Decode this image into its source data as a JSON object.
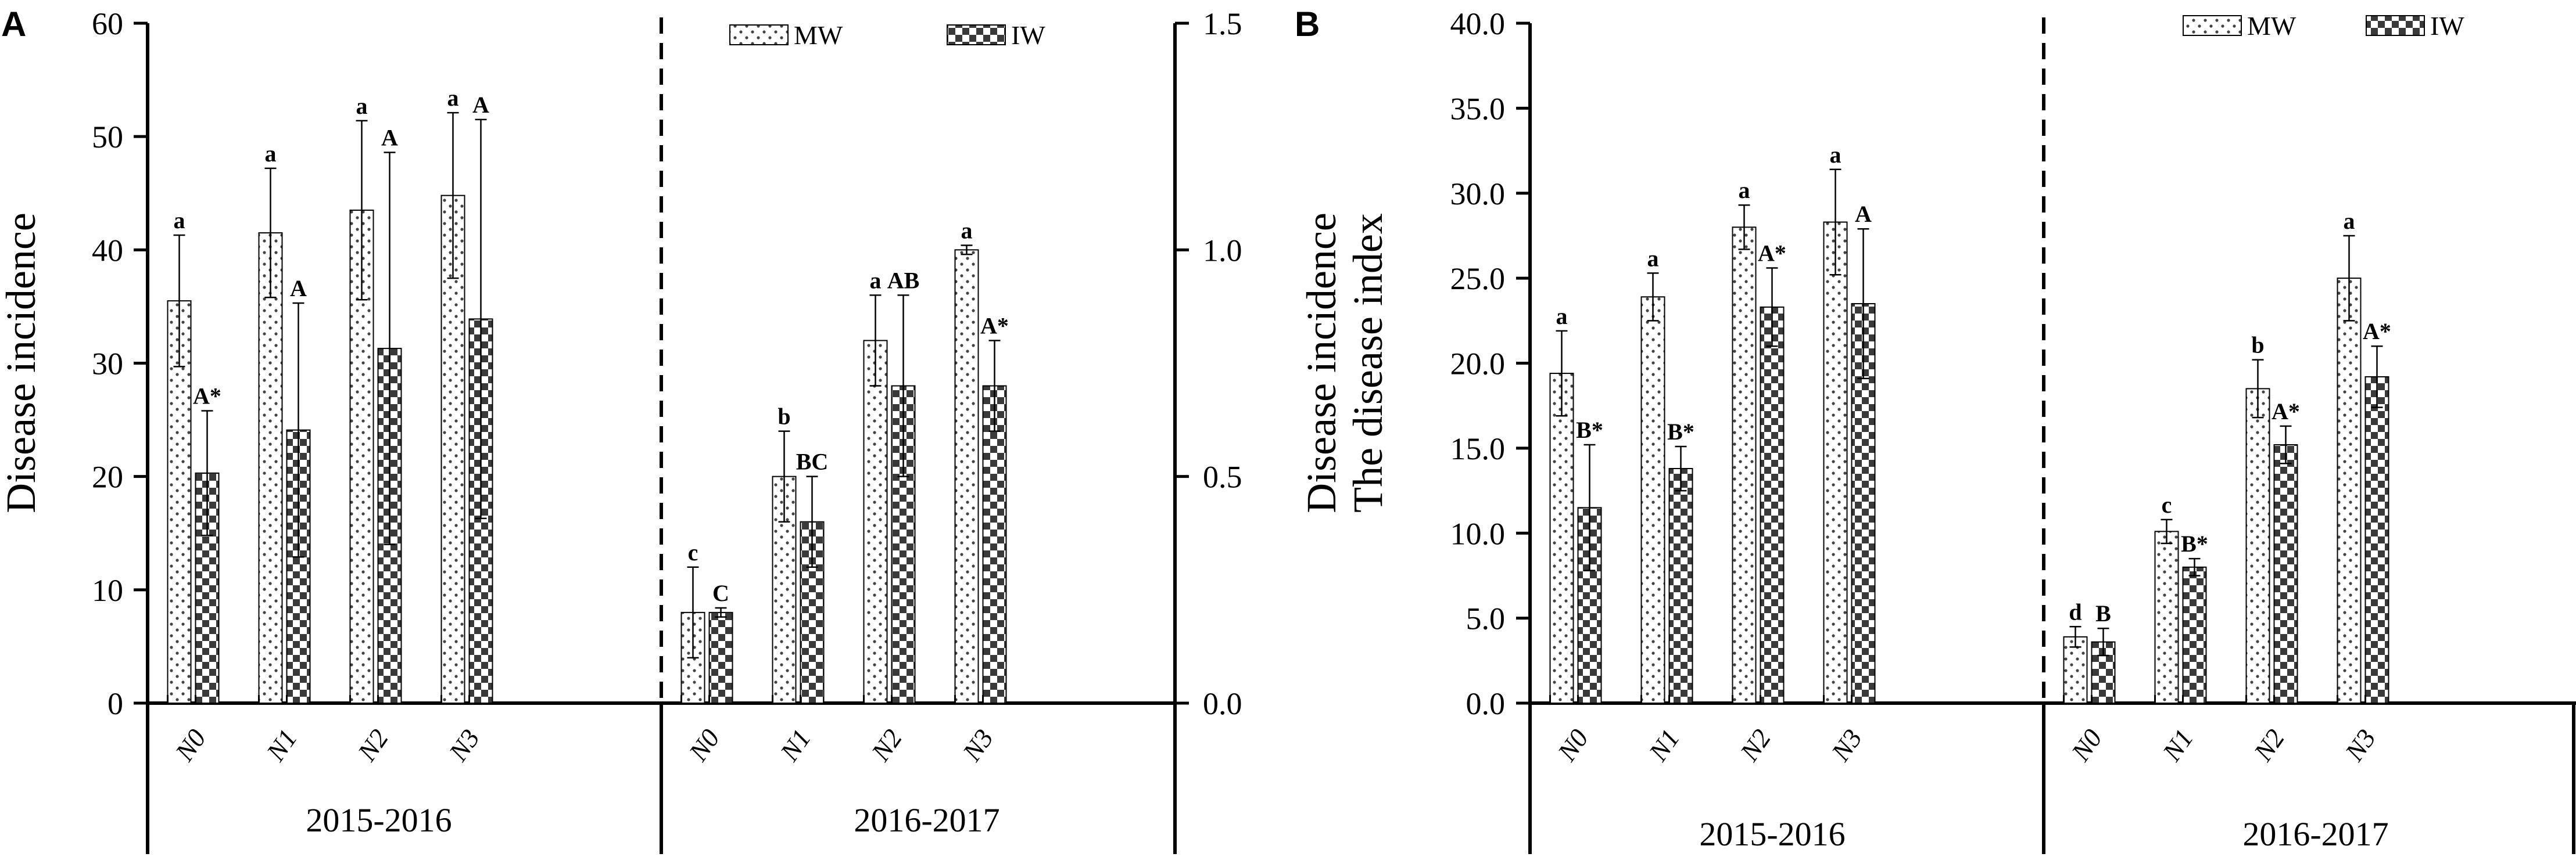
{
  "chart_data": [
    {
      "panel_label": "A",
      "type": "bar",
      "ylabel": "Disease incidence",
      "y2label": "Disease incidence",
      "legend": {
        "placement": "top-right",
        "entries": [
          "MW",
          "IW"
        ]
      },
      "series_names": [
        "MW",
        "IW"
      ],
      "ticks": [
        "0",
        "10",
        "20",
        "30",
        "40",
        "50",
        "60"
      ],
      "ticks_right": [
        "0.0",
        "0.5",
        "1.0",
        "1.5"
      ],
      "groups": [
        {
          "label": "2015-2016",
          "ylim": [
            0,
            60
          ],
          "axis": "left",
          "categories": [
            "N0",
            "N1",
            "N2",
            "N3"
          ],
          "series": [
            {
              "name": "MW",
              "values": [
                35.5,
                41.5,
                43.5,
                44.8
              ],
              "errors": [
                5.8,
                5.7,
                7.9,
                7.3
              ],
              "letters": [
                "a",
                "a",
                "a",
                "a"
              ]
            },
            {
              "name": "IW",
              "values": [
                20.3,
                24.1,
                31.3,
                33.9
              ],
              "errors": [
                5.5,
                11.2,
                17.3,
                17.6
              ],
              "letters": [
                "A*",
                "A",
                "A",
                "A"
              ]
            }
          ]
        },
        {
          "label": "2016-2017",
          "ylim": [
            0,
            1.5
          ],
          "axis": "right",
          "categories": [
            "N0",
            "N1",
            "N2",
            "N3"
          ],
          "series": [
            {
              "name": "MW",
              "values": [
                0.2,
                0.5,
                0.8,
                1.0
              ],
              "errors": [
                0.1,
                0.1,
                0.1,
                0.01
              ],
              "letters": [
                "c",
                "b",
                "a",
                "a"
              ]
            },
            {
              "name": "IW",
              "values": [
                0.2,
                0.4,
                0.7,
                0.7
              ],
              "errors": [
                0.01,
                0.1,
                0.2,
                0.1
              ],
              "letters": [
                "C",
                "BC",
                "AB",
                "A*"
              ]
            }
          ]
        }
      ]
    },
    {
      "panel_label": "B",
      "type": "bar",
      "ylabel": "The disease index",
      "legend": {
        "placement": "top-right",
        "entries": [
          "MW",
          "IW"
        ]
      },
      "series_names": [
        "MW",
        "IW"
      ],
      "ylim": [
        0,
        40
      ],
      "ticks": [
        "0.0",
        "5.0",
        "10.0",
        "15.0",
        "20.0",
        "25.0",
        "30.0",
        "35.0",
        "40.0"
      ],
      "groups": [
        {
          "label": "2015-2016",
          "categories": [
            "N0",
            "N1",
            "N2",
            "N3"
          ],
          "series": [
            {
              "name": "MW",
              "values": [
                19.4,
                23.9,
                28.0,
                28.3
              ],
              "errors": [
                2.5,
                1.4,
                1.3,
                3.1
              ],
              "letters": [
                "a",
                "a",
                "a",
                "a"
              ]
            },
            {
              "name": "IW",
              "values": [
                11.5,
                13.8,
                23.3,
                23.5
              ],
              "errors": [
                3.7,
                1.3,
                2.3,
                4.4
              ],
              "letters": [
                "B*",
                "B*",
                "A*",
                "A"
              ]
            }
          ]
        },
        {
          "label": "2016-2017",
          "categories": [
            "N0",
            "N1",
            "N2",
            "N3"
          ],
          "series": [
            {
              "name": "MW",
              "values": [
                3.9,
                10.1,
                18.5,
                25.0
              ],
              "errors": [
                0.6,
                0.7,
                1.7,
                2.5
              ],
              "letters": [
                "d",
                "c",
                "b",
                "a"
              ]
            },
            {
              "name": "IW",
              "values": [
                3.6,
                8.0,
                15.2,
                19.2
              ],
              "errors": [
                0.8,
                0.5,
                1.1,
                1.8
              ],
              "letters": [
                "B",
                "B*",
                "A*",
                "A*"
              ]
            }
          ]
        }
      ]
    }
  ]
}
